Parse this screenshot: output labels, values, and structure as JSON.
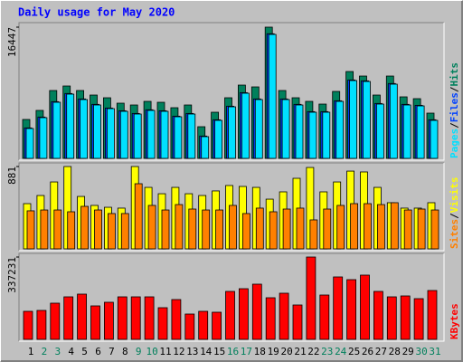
{
  "chart_data": {
    "type": "bar",
    "title": "Daily usage for May 2020",
    "title_color": "#0000ff",
    "categories": [
      "1",
      "2",
      "3",
      "4",
      "5",
      "6",
      "7",
      "8",
      "9",
      "10",
      "11",
      "12",
      "13",
      "14",
      "15",
      "16",
      "17",
      "18",
      "19",
      "20",
      "21",
      "22",
      "23",
      "24",
      "25",
      "26",
      "27",
      "28",
      "29",
      "30",
      "31"
    ],
    "category_colors": [
      "#000000",
      "#00805c",
      "#00805c",
      "#000000",
      "#000000",
      "#000000",
      "#000000",
      "#000000",
      "#00805c",
      "#00805c",
      "#000000",
      "#000000",
      "#000000",
      "#000000",
      "#000000",
      "#00805c",
      "#00805c",
      "#000000",
      "#000000",
      "#000000",
      "#000000",
      "#000000",
      "#00805c",
      "#00805c",
      "#000000",
      "#000000",
      "#000000",
      "#000000",
      "#000000",
      "#00805c",
      "#00805c"
    ],
    "legend_separator": "/",
    "panels": [
      {
        "ylim": [
          0,
          16447
        ],
        "yticks": [
          16447
        ],
        "series": [
          {
            "name": "Hits",
            "color": "#00805c",
            "values": [
              4877,
              6011,
              8505,
              9072,
              8505,
              7938,
              7598,
              6917,
              6691,
              7144,
              7031,
              6350,
              6691,
              3969,
              5783,
              7598,
              9185,
              8959,
              16447,
              8505,
              7598,
              7144,
              6804,
              8392,
              10886,
              10319,
              7938,
              10319,
              7711,
              7484,
              5670
            ]
          },
          {
            "name": "Files",
            "color": "#0040ff",
            "values": [
              3820,
              5180,
              7110,
              8130,
              7450,
              6770,
              6310,
              5970,
              5630,
              6090,
              5970,
              5290,
              5630,
              2800,
              4840,
              6540,
              8240,
              7450,
              15620,
              7450,
              6770,
              5860,
              5860,
              7220,
              9830,
              9720,
              6880,
              9380,
              6770,
              6650,
              4840
            ]
          },
          {
            "name": "Pages",
            "color": "#00e0ff",
            "values": [
              3742,
              5103,
              7031,
              8051,
              7371,
              6691,
              6237,
              5897,
              5557,
              6010,
              5897,
              5216,
              5557,
              2722,
              4763,
              6464,
              8165,
              7371,
              15536,
              7371,
              6691,
              5783,
              5783,
              7144,
              9752,
              9639,
              6804,
              9299,
              6691,
              6577,
              4763
            ]
          }
        ]
      },
      {
        "ylim": [
          0,
          881
        ],
        "yticks": [
          881
        ],
        "series": [
          {
            "name": "Visits",
            "color": "#ffff00",
            "values": [
              484,
              571,
              716,
              881,
              561,
              465,
              445,
              436,
              881,
              658,
              590,
              658,
              590,
              571,
              620,
              678,
              668,
              658,
              532,
              610,
              755,
              871,
              610,
              716,
              832,
              823,
              658,
              494,
              436,
              436,
              494
            ]
          },
          {
            "name": "Sites",
            "color": "#ff8000",
            "values": [
              407,
              416,
              416,
              397,
              455,
              416,
              378,
              378,
              697,
              465,
              416,
              474,
              426,
              416,
              416,
              465,
              378,
              436,
              397,
              426,
              436,
              310,
              426,
              465,
              484,
              484,
              474,
              494,
              416,
              426,
              416
            ]
          }
        ]
      },
      {
        "ylim": [
          0,
          337231
        ],
        "yticks": [
          337231
        ],
        "series": [
          {
            "name": "KBytes",
            "color": "#ff0000",
            "values": [
              114886,
              118592,
              148240,
              174182,
              185300,
              137122,
              151946,
              174182,
              174182,
              174182,
              129710,
              163064,
              103768,
              114886,
              111180,
              196418,
              207536,
              226066,
              170476,
              189006,
              140828,
              337231,
              181594,
              255714,
              244596,
              263126,
              196418,
              174182,
              177888,
              166770,
              200124
            ]
          }
        ]
      }
    ]
  }
}
